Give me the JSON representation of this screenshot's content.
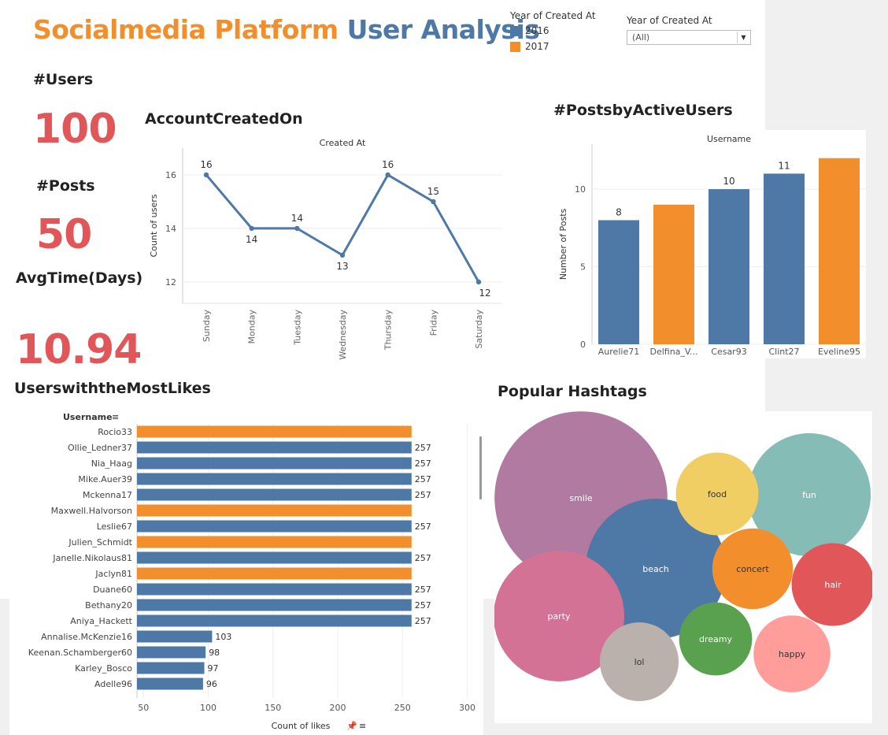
{
  "header": {
    "title_part1": "Socialmedia Platform",
    "title_part2": "User Analysis"
  },
  "legend": {
    "title": "Year of Created At",
    "items": [
      {
        "label": "2016",
        "color": "#4e79a7"
      },
      {
        "label": "2017",
        "color": "#f28e2b"
      }
    ]
  },
  "filter": {
    "label": "Year of Created At",
    "value": "(All)"
  },
  "kpis": {
    "users_label": "#Users",
    "users_value": "100",
    "posts_label": "#Posts",
    "posts_value": "50",
    "avg_label": "AvgTime(Days)",
    "avg_value": "10.94"
  },
  "colors": {
    "blue": "#4e79a7",
    "orange": "#f28e2b",
    "kpi_red": "#e15759"
  },
  "sections": {
    "account_created": "AccountCreatedOn",
    "posts_active": "#PostsbyActiveUsers",
    "most_likes": "UserswiththeMostLikes",
    "hashtags": "Popular Hashtags"
  },
  "chart_data": [
    {
      "type": "line",
      "title": "Created At",
      "xlabel": "",
      "ylabel": "Count of users",
      "categories": [
        "Sunday",
        "Monday",
        "Tuesday",
        "Wednesday",
        "Thursday",
        "Friday",
        "Saturday"
      ],
      "values": [
        16,
        14,
        14,
        13,
        16,
        15,
        12
      ],
      "ylim": [
        11.2,
        17
      ],
      "yticks": [
        12,
        14,
        16
      ],
      "grid": true
    },
    {
      "type": "bar",
      "title": "Username",
      "ylabel": "Number of Posts",
      "categories": [
        "Aurelie71",
        "Delfina_V...",
        "Cesar93",
        "Clint27",
        "Eveline95"
      ],
      "values": [
        8,
        9,
        10,
        11,
        12
      ],
      "year": [
        "2016",
        "2017",
        "2016",
        "2016",
        "2017"
      ],
      "data_labels": [
        "8",
        "",
        "10",
        "11",
        ""
      ],
      "ylim": [
        0,
        12.9
      ],
      "yticks": [
        0,
        5,
        10
      ],
      "grid": true
    },
    {
      "type": "bar",
      "orientation": "horizontal",
      "header": "Username",
      "xlabel": "Count of likes",
      "categories": [
        "Rocio33",
        "Ollie_Ledner37",
        "Nia_Haag",
        "Mike.Auer39",
        "Mckenna17",
        "Maxwell.Halvorson",
        "Leslie67",
        "Julien_Schmidt",
        "Janelle.Nikolaus81",
        "Jaclyn81",
        "Duane60",
        "Bethany20",
        "Aniya_Hackett",
        "Annalise.McKenzie16",
        "Keenan.Schamberger60",
        "Karley_Bosco",
        "Adelle96"
      ],
      "values": [
        257,
        257,
        257,
        257,
        257,
        257,
        257,
        257,
        257,
        257,
        257,
        257,
        257,
        103,
        98,
        97,
        96
      ],
      "year": [
        "2017",
        "2016",
        "2016",
        "2016",
        "2016",
        "2017",
        "2016",
        "2017",
        "2016",
        "2017",
        "2016",
        "2016",
        "2016",
        "2016",
        "2016",
        "2016",
        "2016"
      ],
      "data_labels": [
        "",
        "257",
        "257",
        "257",
        "257",
        "",
        "257",
        "",
        "257",
        "",
        "257",
        "257",
        "257",
        "103",
        "98",
        "97",
        "96"
      ],
      "xlim": [
        45,
        310
      ],
      "xticks": [
        50,
        100,
        150,
        200,
        250,
        300
      ],
      "grid": true
    },
    {
      "type": "bubble",
      "title": "Popular Hashtags",
      "items": [
        {
          "label": "smile",
          "value": 9.0,
          "color": "#b07aa1"
        },
        {
          "label": "beach",
          "value": 7.3,
          "color": "#4e79a7"
        },
        {
          "label": "party",
          "value": 6.8,
          "color": "#d37295"
        },
        {
          "label": "fun",
          "value": 6.4,
          "color": "#86bcb6"
        },
        {
          "label": "hair",
          "value": 4.3,
          "color": "#e15759"
        },
        {
          "label": "food",
          "value": 4.3,
          "color": "#f1ce63"
        },
        {
          "label": "concert",
          "value": 4.2,
          "color": "#f28e2b"
        },
        {
          "label": "happy",
          "value": 4.0,
          "color": "#ff9d9a"
        },
        {
          "label": "lol",
          "value": 4.1,
          "color": "#bab0ac"
        },
        {
          "label": "dreamy",
          "value": 3.8,
          "color": "#59a14f"
        }
      ]
    }
  ]
}
